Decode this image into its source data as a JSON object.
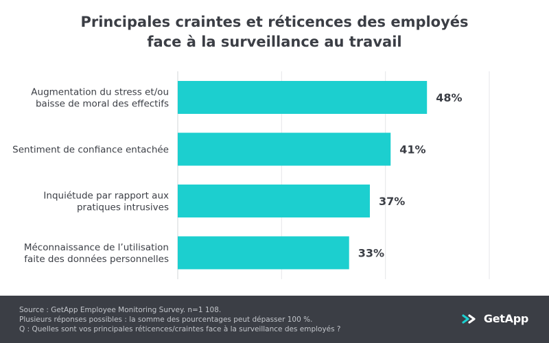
{
  "header": {
    "title_line1": "Principales craintes et réticences des employés",
    "title_line2": "face à la surveillance au travail"
  },
  "chart_data": {
    "type": "bar",
    "orientation": "horizontal",
    "categories": [
      [
        "Augmentation du stress et/ou",
        "baisse de moral des effectifs"
      ],
      [
        "Sentiment de confiance entachée"
      ],
      [
        "Inquiétude par rapport aux",
        "pratiques intrusives"
      ],
      [
        "Méconnaissance de l’utilisation",
        "faite des données personnelles"
      ]
    ],
    "values": [
      48,
      41,
      37,
      33
    ],
    "value_labels": [
      "48%",
      "41%",
      "37%",
      "33%"
    ],
    "xlim": [
      0,
      60
    ],
    "grid": true,
    "bar_color": "#1ccfcf"
  },
  "footer": {
    "source": "Source : GetApp Employee Monitoring Survey. n=1 108.",
    "note": "Plusieurs réponses possibles : la somme des pourcentages peut dépasser 100 %.",
    "question": "Q : Quelles sont vos principales réticences/craintes face à la surveillance des employés ?",
    "brand": "GetApp",
    "brand_icon": "getapp-chevrons-icon",
    "background": "#3b3e45"
  }
}
